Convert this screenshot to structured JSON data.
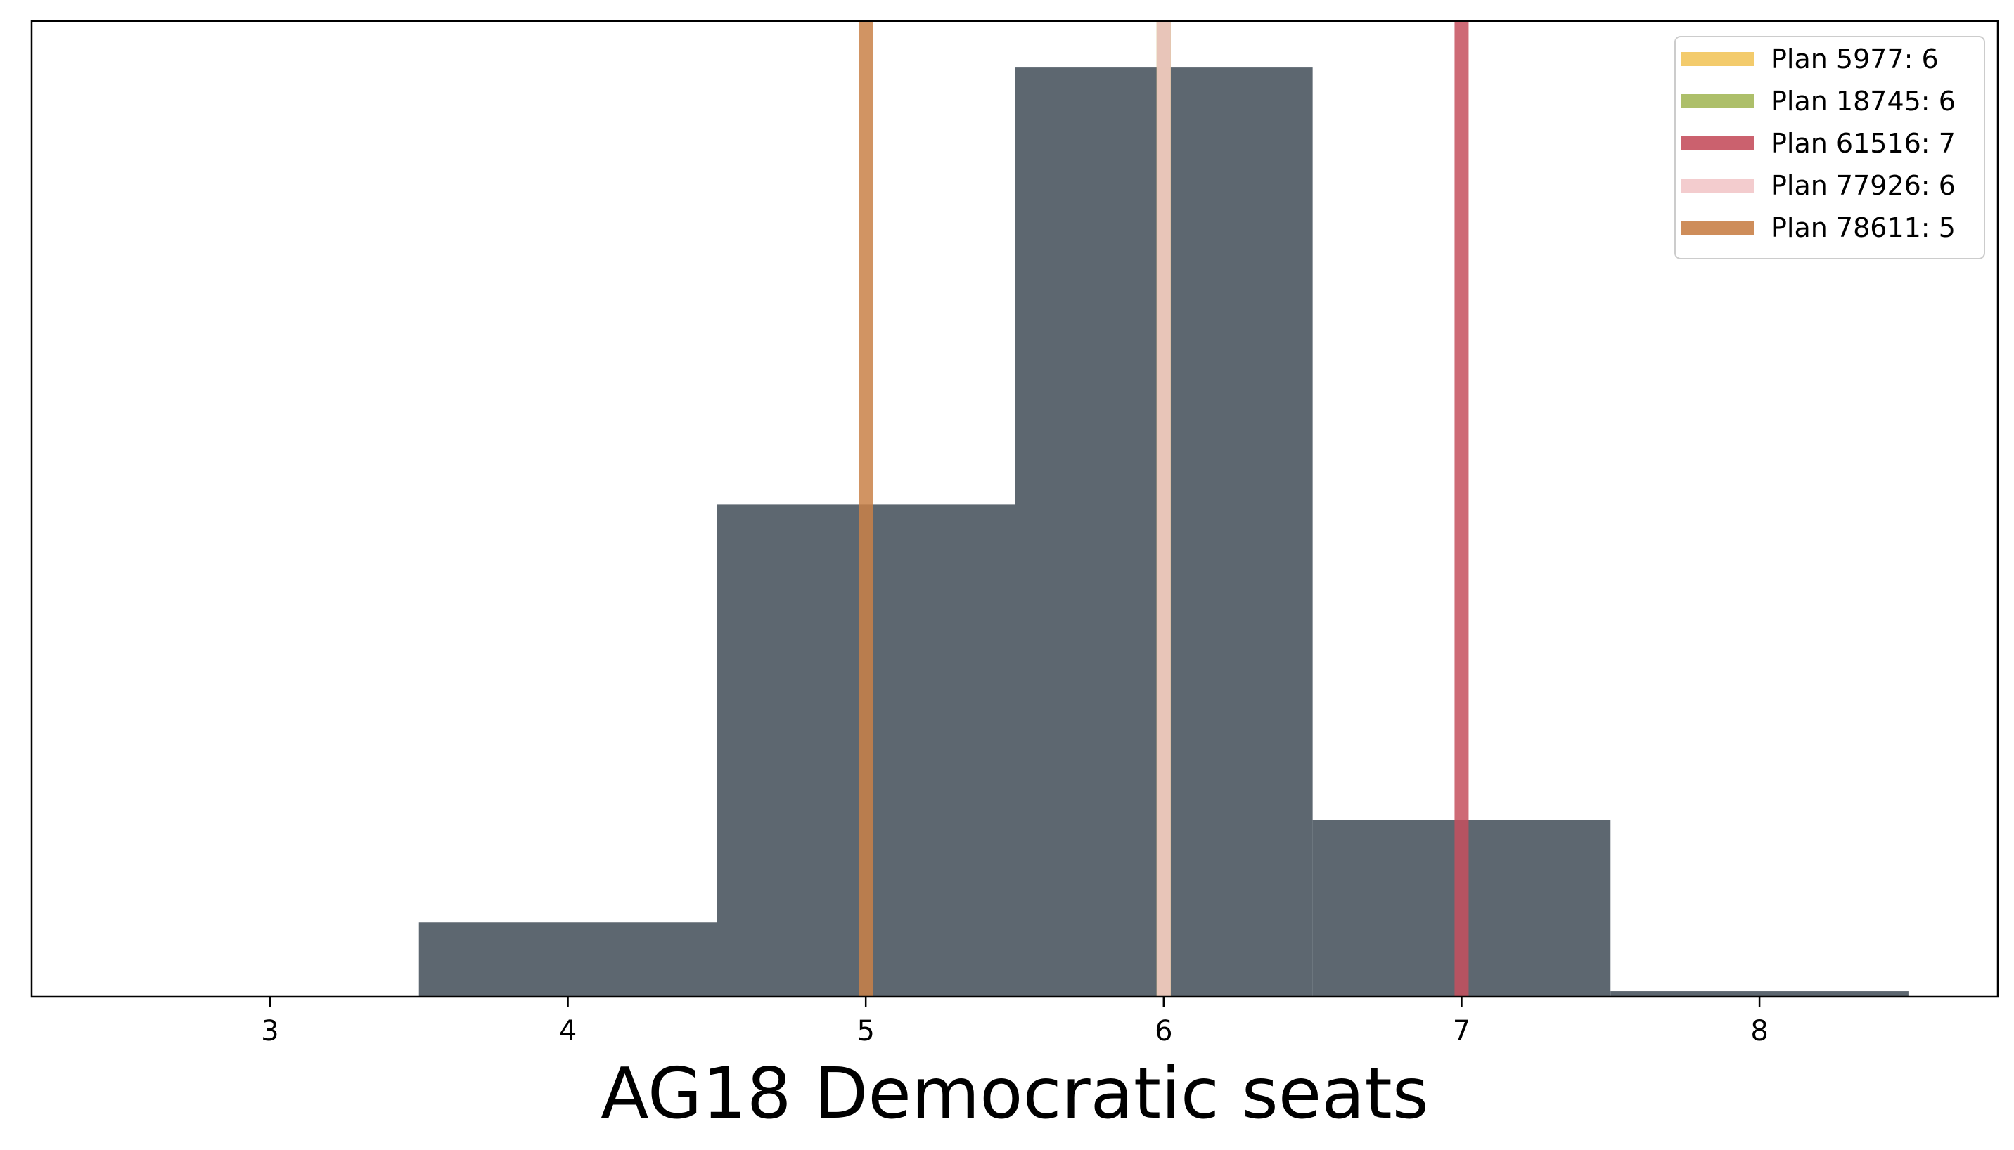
{
  "chart_data": {
    "type": "bar",
    "title": "",
    "xlabel": "AG18 Democratic seats",
    "ylabel": "",
    "xlim": [
      2.2,
      8.8
    ],
    "ylim": [
      0,
      1.05
    ],
    "x_ticks": [
      3,
      4,
      5,
      6,
      7,
      8
    ],
    "y_ticks_visible": false,
    "grid": false,
    "legend_position": "top-right",
    "histogram": {
      "color": "#5d6770",
      "bins": [
        {
          "left": 3.5,
          "right": 4.5,
          "value": 0.08
        },
        {
          "left": 4.5,
          "right": 5.5,
          "value": 0.53
        },
        {
          "left": 5.5,
          "right": 6.5,
          "value": 1.0
        },
        {
          "left": 6.5,
          "right": 7.5,
          "value": 0.19
        },
        {
          "left": 7.5,
          "right": 8.5,
          "value": 0.006
        }
      ]
    },
    "series": [
      {
        "name": "Plan 5977: 6",
        "value": 6,
        "color": "#f2c55c"
      },
      {
        "name": "Plan 18745: 6",
        "value": 6,
        "color": "#a4b85a"
      },
      {
        "name": "Plan 61516: 7",
        "value": 7,
        "color": "#c5505e"
      },
      {
        "name": "Plan 77926: 6",
        "value": 6,
        "color": "#f2c7c9"
      },
      {
        "name": "Plan 78611: 5",
        "value": 5,
        "color": "#c98148"
      }
    ]
  }
}
